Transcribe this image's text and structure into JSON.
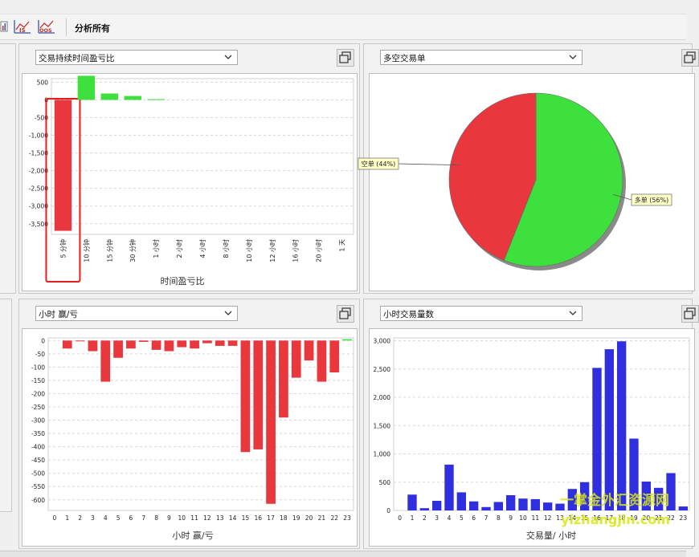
{
  "toolbar": {
    "icons": [
      "chart-icon",
      "line-chart-icon",
      "oos-chart-icon"
    ],
    "icon_labels": [
      "",
      "IS",
      "OOS"
    ],
    "analyze_all_label": "分析所有"
  },
  "panels": [
    {
      "dropdown": "交易持续时间盈亏比"
    },
    {
      "dropdown": "多空交易单"
    },
    {
      "dropdown": "小时 赢/亏"
    },
    {
      "dropdown": "小时交易量数"
    }
  ],
  "watermark": {
    "line1": "一掌金外汇资源网",
    "line2": "yizhangjin.com"
  },
  "colors": {
    "red": "#e8383d",
    "green": "#3de03d",
    "blue": "#2f2fe0",
    "highlight": "#e41e1e"
  },
  "chart_data": [
    {
      "type": "bar",
      "title": "",
      "xlabel": "时间盈亏比",
      "ylabel": "",
      "categories": [
        "5 分钟",
        "10 分钟",
        "15 分钟",
        "30 分钟",
        "1 小时",
        "2 小时",
        "4 小时",
        "8 小时",
        "10 小时",
        "12 小时",
        "16 小时",
        "20 小时",
        "1 天"
      ],
      "values": [
        -3700,
        680,
        180,
        110,
        20,
        0,
        0,
        0,
        0,
        0,
        0,
        0,
        0
      ],
      "ylim": [
        -3800,
        600
      ],
      "yticks": [
        500,
        0,
        -500,
        -1000,
        -1500,
        -2000,
        -2500,
        -3000,
        -3500
      ],
      "ytick_labels": [
        "500",
        "0",
        "-500",
        "-1,000",
        "-1,500",
        "-2,000",
        "-2,500",
        "-3,000",
        "-3,500"
      ],
      "grid": true,
      "highlighted_category": "5 分钟"
    },
    {
      "type": "pie",
      "title": "",
      "slices": [
        {
          "label": "多单",
          "value": 56,
          "display": "多单 (56%)"
        },
        {
          "label": "空单",
          "value": 44,
          "display": "空单 (44%)"
        }
      ]
    },
    {
      "type": "bar",
      "title": "",
      "xlabel": "小时 赢/亏",
      "ylabel": "",
      "categories": [
        "0",
        "1",
        "2",
        "3",
        "4",
        "5",
        "6",
        "7",
        "8",
        "9",
        "10",
        "11",
        "12",
        "13",
        "14",
        "15",
        "16",
        "17",
        "18",
        "19",
        "20",
        "21",
        "22",
        "23"
      ],
      "values": [
        0,
        -30,
        -2,
        -40,
        -155,
        -65,
        -30,
        -5,
        -35,
        -40,
        -25,
        -30,
        -10,
        -20,
        -20,
        -420,
        -410,
        -615,
        -290,
        -140,
        -75,
        -155,
        -120,
        5
      ],
      "ylim": [
        -640,
        10
      ],
      "yticks": [
        0,
        -50,
        -100,
        -150,
        -200,
        -250,
        -300,
        -350,
        -400,
        -450,
        -500,
        -550,
        -600
      ],
      "ytick_labels": [
        "0",
        "-50",
        "-100",
        "-150",
        "-200",
        "-250",
        "-300",
        "-350",
        "-400",
        "-450",
        "-500",
        "-550",
        "-600"
      ],
      "grid": true
    },
    {
      "type": "bar",
      "title": "",
      "xlabel": "交易量/ 小时",
      "ylabel": "",
      "categories": [
        "0",
        "1",
        "2",
        "3",
        "4",
        "5",
        "6",
        "7",
        "8",
        "9",
        "10",
        "11",
        "12",
        "13",
        "14",
        "15",
        "16",
        "17",
        "18",
        "19",
        "20",
        "21",
        "22",
        "23"
      ],
      "values": [
        0,
        280,
        40,
        170,
        810,
        320,
        160,
        60,
        150,
        270,
        210,
        200,
        140,
        120,
        380,
        500,
        2520,
        2850,
        2990,
        1270,
        510,
        400,
        660,
        70
      ],
      "ylim": [
        0,
        3050
      ],
      "yticks": [
        0,
        500,
        1000,
        1500,
        2000,
        2500,
        3000
      ],
      "ytick_labels": [
        "0",
        "500",
        "1,000",
        "1,500",
        "2,000",
        "2,500",
        "3,000"
      ],
      "grid": true
    }
  ]
}
